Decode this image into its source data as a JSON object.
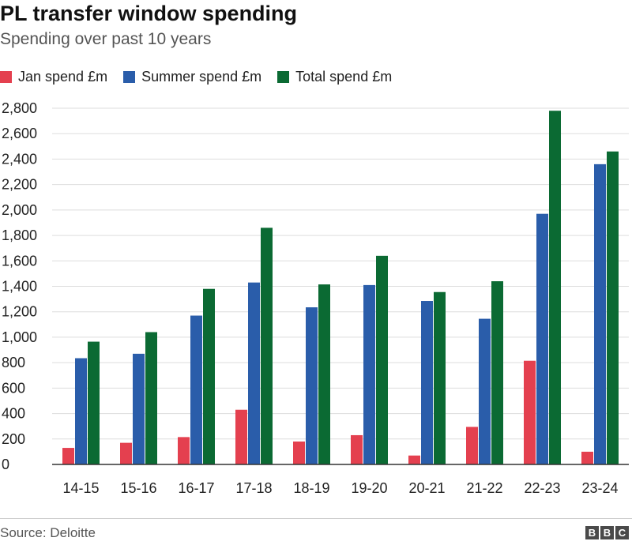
{
  "header": {
    "title": "PL transfer window spending",
    "subtitle": "Spending over past 10 years"
  },
  "footer": {
    "source": "Source: Deloitte",
    "logo_letters": [
      "B",
      "B",
      "C"
    ]
  },
  "colors": {
    "jan": "#e4404f",
    "summer": "#2a5daa",
    "total": "#0b6a33",
    "grid": "#dddddd",
    "axis": "#333333"
  },
  "chart_data": {
    "type": "bar",
    "title": "PL transfer window spending",
    "subtitle": "Spending over past 10 years",
    "xlabel": "",
    "ylabel": "",
    "categories": [
      "14-15",
      "15-16",
      "16-17",
      "17-18",
      "18-19",
      "19-20",
      "20-21",
      "21-22",
      "22-23",
      "23-24"
    ],
    "series": [
      {
        "name": "Jan spend £m",
        "values": [
          130,
          170,
          215,
          430,
          180,
          230,
          70,
          295,
          815,
          100
        ]
      },
      {
        "name": "Summer spend £m",
        "values": [
          835,
          870,
          1170,
          1430,
          1235,
          1410,
          1285,
          1145,
          1970,
          2360
        ]
      },
      {
        "name": "Total spend £m",
        "values": [
          965,
          1040,
          1380,
          1860,
          1415,
          1640,
          1355,
          1440,
          2780,
          2460
        ]
      }
    ],
    "ylim": [
      0,
      2800
    ],
    "yticks": [
      0,
      200,
      400,
      600,
      800,
      1000,
      1200,
      1400,
      1600,
      1800,
      2000,
      2200,
      2400,
      2600,
      2800
    ],
    "ytick_labels": [
      "0",
      "200",
      "400",
      "600",
      "800",
      "1,000",
      "1,200",
      "1,400",
      "1,600",
      "1,800",
      "2,000",
      "2,200",
      "2,400",
      "2,600",
      "2,800"
    ],
    "grid": true,
    "legend": "top-left"
  }
}
